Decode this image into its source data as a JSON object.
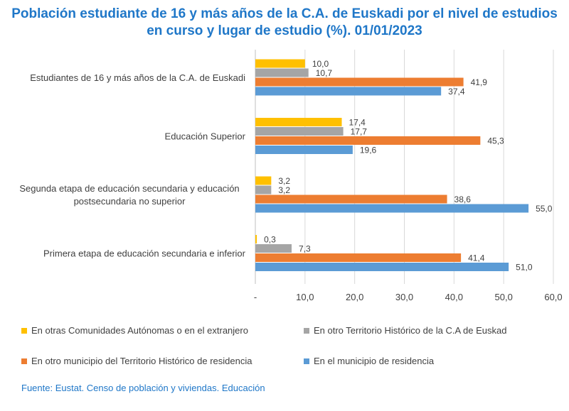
{
  "title_line1": "Población estudiante de 16 y más años de la C.A. de Euskadi por el nivel de estudios",
  "title_line2": "en curso y lugar de estudio (%). 01/01/2023",
  "source": "Fuente: Eustat. Censo de población y viviendas. Educación",
  "chart_data": {
    "type": "bar",
    "orientation": "horizontal",
    "categories": [
      "Estudiantes de 16 y más años de la C.A. de Euskadi",
      "Educación Superior",
      "Segunda etapa de educación secundaria y educación postsecundaria no superior",
      "Primera etapa de educación secundaria e inferior"
    ],
    "category_label_lines": [
      [
        "Estudiantes de 16 y más años de la C.A. de Euskadi"
      ],
      [
        "Educación Superior"
      ],
      [
        "Segunda etapa de educación secundaria y educación",
        "postsecundaria no superior"
      ],
      [
        "Primera etapa de educación secundaria e inferior"
      ]
    ],
    "series": [
      {
        "name": "En otras Comunidades Autónomas o en el extranjero",
        "color": "#FFC000",
        "values": [
          10.0,
          17.4,
          3.2,
          0.3
        ],
        "labels": [
          "10,0",
          "17,4",
          "3,2",
          "0,3"
        ]
      },
      {
        "name": "En otro Territorio Histórico de la C.A de Euskad",
        "color": "#A5A5A5",
        "values": [
          10.7,
          17.7,
          3.2,
          7.3
        ],
        "labels": [
          "10,7",
          "17,7",
          "3,2",
          "7,3"
        ]
      },
      {
        "name": "En otro municipio del Territorio Histórico de residencia",
        "color": "#ED7D31",
        "values": [
          41.9,
          45.3,
          38.6,
          41.4
        ],
        "labels": [
          "41,9",
          "45,3",
          "38,6",
          "41,4"
        ]
      },
      {
        "name": "En el municipio de residencia",
        "color": "#5B9BD5",
        "values": [
          37.4,
          19.6,
          55.0,
          51.0
        ],
        "labels": [
          "37,4",
          "19,6",
          "55,0",
          "51,0"
        ]
      }
    ],
    "xlim": [
      0,
      60
    ],
    "x_ticks": [
      0,
      10,
      20,
      30,
      40,
      50,
      60
    ],
    "x_tick_labels": [
      "-",
      "10,0",
      "20,0",
      "30,0",
      "40,0",
      "50,0",
      "60,0"
    ],
    "grid": true,
    "legend_position": "bottom"
  }
}
